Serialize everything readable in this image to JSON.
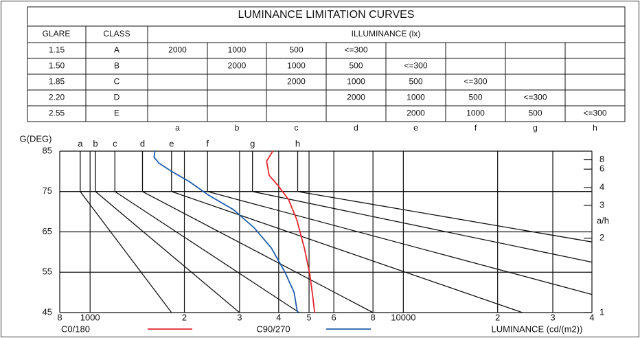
{
  "table": {
    "title": "LUMINANCE LIMITATION CURVES",
    "header": [
      "GLARE",
      "CLASS",
      "ILLUMINANCE (lx)"
    ],
    "rows": [
      [
        "1.15",
        "A",
        "2000",
        "1000",
        "500",
        "<=300",
        null,
        null,
        null,
        null
      ],
      [
        "1.50",
        "B",
        null,
        "2000",
        "1000",
        "500",
        "<=300",
        null,
        null,
        null
      ],
      [
        "1.85",
        "C",
        null,
        null,
        "2000",
        "1000",
        "500",
        "<=300",
        null,
        null
      ],
      [
        "2.20",
        "D",
        null,
        null,
        null,
        "2000",
        "1000",
        "500",
        "<=300",
        null
      ],
      [
        "2.55",
        "E",
        null,
        null,
        null,
        null,
        "2000",
        "1000",
        "500",
        "<=300"
      ]
    ],
    "column_letters": [
      "a",
      "b",
      "c",
      "d",
      "e",
      "f",
      "g",
      "h"
    ]
  },
  "chart_data": {
    "type": "line",
    "y_label": "G(DEG)",
    "x_label": "LUMINANCE (cd/(m2))",
    "y2_label": "a/h",
    "log_x": true,
    "xlim": [
      800,
      40000
    ],
    "xticks": [
      {
        "value": 800,
        "label": "8"
      },
      1000,
      {
        "value": 2000,
        "label": "2"
      },
      {
        "value": 3000,
        "label": "3"
      },
      {
        "value": 4000,
        "label": "4"
      },
      {
        "value": 5000,
        "label": "5"
      },
      {
        "value": 6000,
        "label": "6"
      },
      {
        "value": 8000,
        "label": "8"
      },
      10000,
      {
        "value": 20000,
        "label": "2"
      },
      {
        "value": 30000,
        "label": "3"
      },
      {
        "value": 40000,
        "label": "4"
      }
    ],
    "ylim": [
      45,
      85
    ],
    "yticks": [
      45,
      55,
      65,
      75,
      85
    ],
    "y2ticks": [
      8,
      6,
      4,
      3,
      2,
      1
    ],
    "grid": true,
    "series": [
      {
        "name": "C0/180",
        "color": "#e3262c",
        "x": [
          3830,
          3660,
          3730,
          3980,
          4300,
          4570,
          4830,
          5030,
          5130,
          5210
        ],
        "values": [
          85,
          82.5,
          79,
          76.5,
          73,
          68,
          61,
          54.5,
          49.5,
          45
        ]
      },
      {
        "name": "C90/270",
        "color": "#1f5ca8",
        "x": [
          1610,
          1600,
          1660,
          1820,
          2070,
          2400,
          2870,
          3340,
          3790,
          4190,
          4480,
          4590
        ],
        "values": [
          85,
          83.5,
          82,
          80,
          77.5,
          74,
          70.5,
          66,
          61,
          55,
          50,
          45
        ]
      }
    ],
    "limit_curves": [
      {
        "name": "a",
        "x": [
          930,
          930,
          1820
        ],
        "values": [
          85,
          75,
          45
        ]
      },
      {
        "name": "b",
        "x": [
          1040,
          1040,
          3000
        ],
        "values": [
          85,
          75,
          45
        ]
      },
      {
        "name": "c",
        "x": [
          1200,
          1200,
          4650
        ],
        "values": [
          85,
          75,
          45
        ]
      },
      {
        "name": "d",
        "x": [
          1470,
          1470,
          8000
        ],
        "values": [
          85,
          75,
          45
        ]
      },
      {
        "name": "e",
        "x": [
          1820,
          1820,
          24000
        ],
        "values": [
          85,
          75,
          45
        ]
      },
      {
        "name": "f",
        "x": [
          2370,
          2370,
          40000
        ],
        "values": [
          85,
          75,
          49.5
        ]
      },
      {
        "name": "g",
        "x": [
          3300,
          3300,
          40000
        ],
        "values": [
          85,
          75,
          57.5
        ]
      },
      {
        "name": "h",
        "x": [
          4600,
          4600,
          40000
        ],
        "values": [
          85,
          75,
          62.5
        ]
      }
    ]
  }
}
